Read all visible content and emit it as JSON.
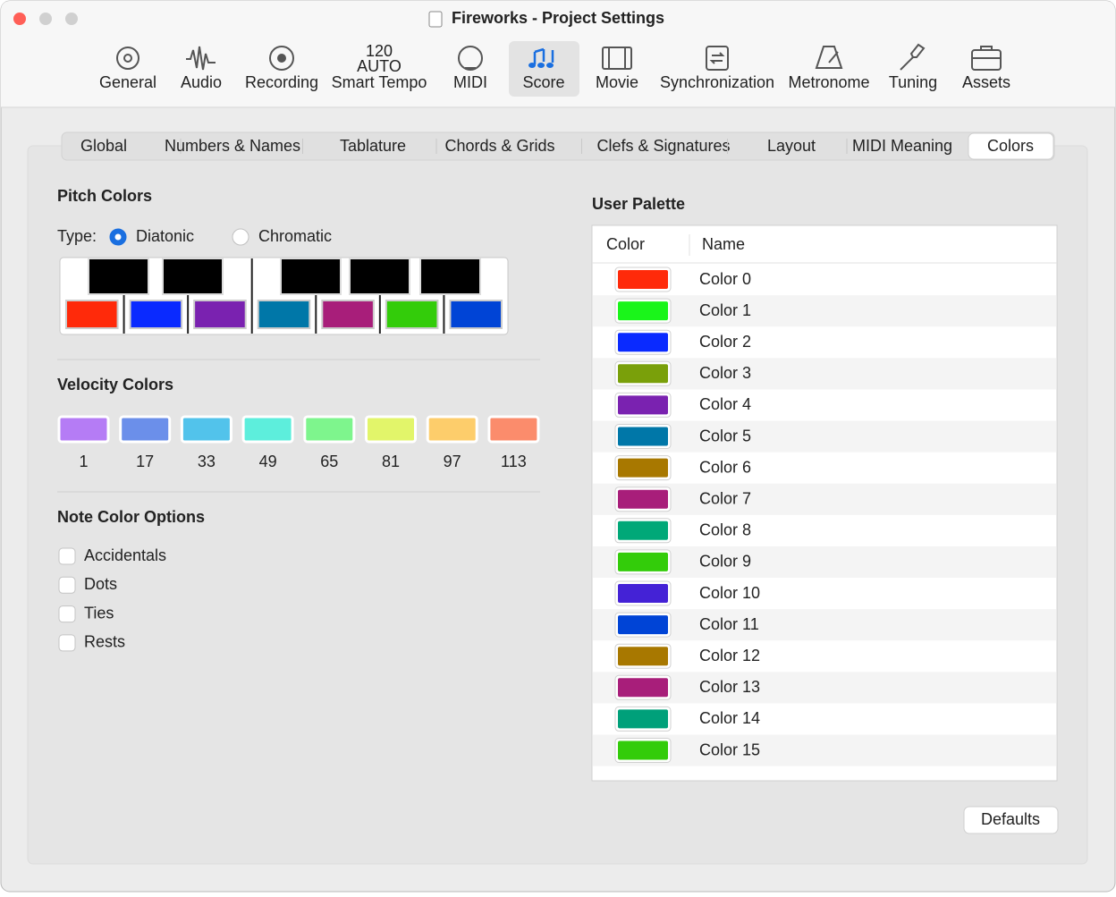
{
  "window": {
    "title": "Fireworks - Project Settings"
  },
  "toolbar": {
    "selected": 5,
    "items": [
      {
        "label": "General"
      },
      {
        "label": "Audio"
      },
      {
        "label": "Recording"
      },
      {
        "label": "Smart Tempo",
        "icon_text": [
          "120",
          "AUTO"
        ]
      },
      {
        "label": "MIDI"
      },
      {
        "label": "Score"
      },
      {
        "label": "Movie"
      },
      {
        "label": "Synchronization"
      },
      {
        "label": "Metronome"
      },
      {
        "label": "Tuning"
      },
      {
        "label": "Assets"
      }
    ]
  },
  "tabs": {
    "selected": 7,
    "items": [
      "Global",
      "Numbers & Names",
      "Tablature",
      "Chords & Grids",
      "Clefs & Signatures",
      "Layout",
      "MIDI Meaning",
      "Colors"
    ]
  },
  "pitch_colors": {
    "title": "Pitch Colors",
    "type_label": "Type:",
    "options": [
      "Diatonic",
      "Chromatic"
    ],
    "selected": 0,
    "key_colors": [
      "#ff2a0a",
      "#0a2aff",
      "#7a22b0",
      "#0077a8",
      "#a81e7a",
      "#33cc0a",
      "#0044d6"
    ]
  },
  "velocity_colors": {
    "title": "Velocity Colors",
    "items": [
      {
        "value": 1,
        "color": "#b57cf5"
      },
      {
        "value": 17,
        "color": "#6b8fea"
      },
      {
        "value": 33,
        "color": "#52c3eb"
      },
      {
        "value": 49,
        "color": "#5deedc"
      },
      {
        "value": 65,
        "color": "#7ef58d"
      },
      {
        "value": 81,
        "color": "#e2f56a"
      },
      {
        "value": 97,
        "color": "#fdcd6b"
      },
      {
        "value": 113,
        "color": "#fb8c6c"
      }
    ]
  },
  "note_color_options": {
    "title": "Note Color Options",
    "options": [
      "Accidentals",
      "Dots",
      "Ties",
      "Rests"
    ]
  },
  "user_palette": {
    "title": "User Palette",
    "columns": [
      "Color",
      "Name"
    ],
    "rows": [
      {
        "color": "#ff2a0a",
        "name": "Color 0"
      },
      {
        "color": "#1af51a",
        "name": "Color 1"
      },
      {
        "color": "#0a2aff",
        "name": "Color 2"
      },
      {
        "color": "#7aa00a",
        "name": "Color 3"
      },
      {
        "color": "#7a22b0",
        "name": "Color 4"
      },
      {
        "color": "#0077a8",
        "name": "Color 5"
      },
      {
        "color": "#a87800",
        "name": "Color 6"
      },
      {
        "color": "#a81e7a",
        "name": "Color 7"
      },
      {
        "color": "#00a878",
        "name": "Color 8"
      },
      {
        "color": "#33cc0a",
        "name": "Color 9"
      },
      {
        "color": "#4422d6",
        "name": "Color 10"
      },
      {
        "color": "#0044d6",
        "name": "Color 11"
      },
      {
        "color": "#a87800",
        "name": "Color 12"
      },
      {
        "color": "#a81e7a",
        "name": "Color 13"
      },
      {
        "color": "#00a07a",
        "name": "Color 14"
      },
      {
        "color": "#33cc0a",
        "name": "Color 15"
      }
    ]
  },
  "defaults_button": "Defaults"
}
